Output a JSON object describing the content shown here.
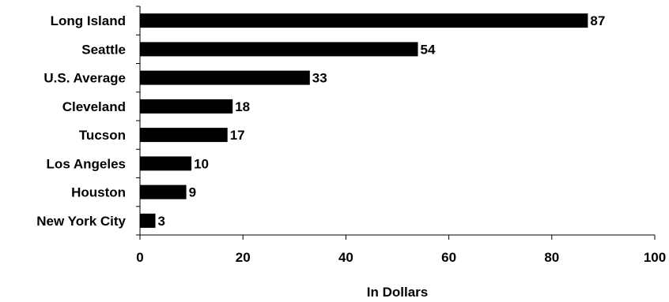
{
  "chart_data": {
    "type": "bar",
    "orientation": "horizontal",
    "categories": [
      "Long Island",
      "Seattle",
      "U.S. Average",
      "Cleveland",
      "Tucson",
      "Los Angeles",
      "Houston",
      "New York City"
    ],
    "values": [
      87,
      54,
      33,
      18,
      17,
      10,
      9,
      3
    ],
    "data_labels": [
      "87",
      "54",
      "33",
      "18",
      "17",
      "10",
      "9",
      "3"
    ],
    "xlabel": "In Dollars",
    "ylabel": "",
    "xlim": [
      0,
      100
    ],
    "x_ticks": [
      0,
      20,
      40,
      60,
      80,
      100
    ],
    "x_tick_labels": [
      "0",
      "20",
      "40",
      "60",
      "80",
      "100"
    ],
    "grid": false,
    "bar_color": "#000000"
  }
}
